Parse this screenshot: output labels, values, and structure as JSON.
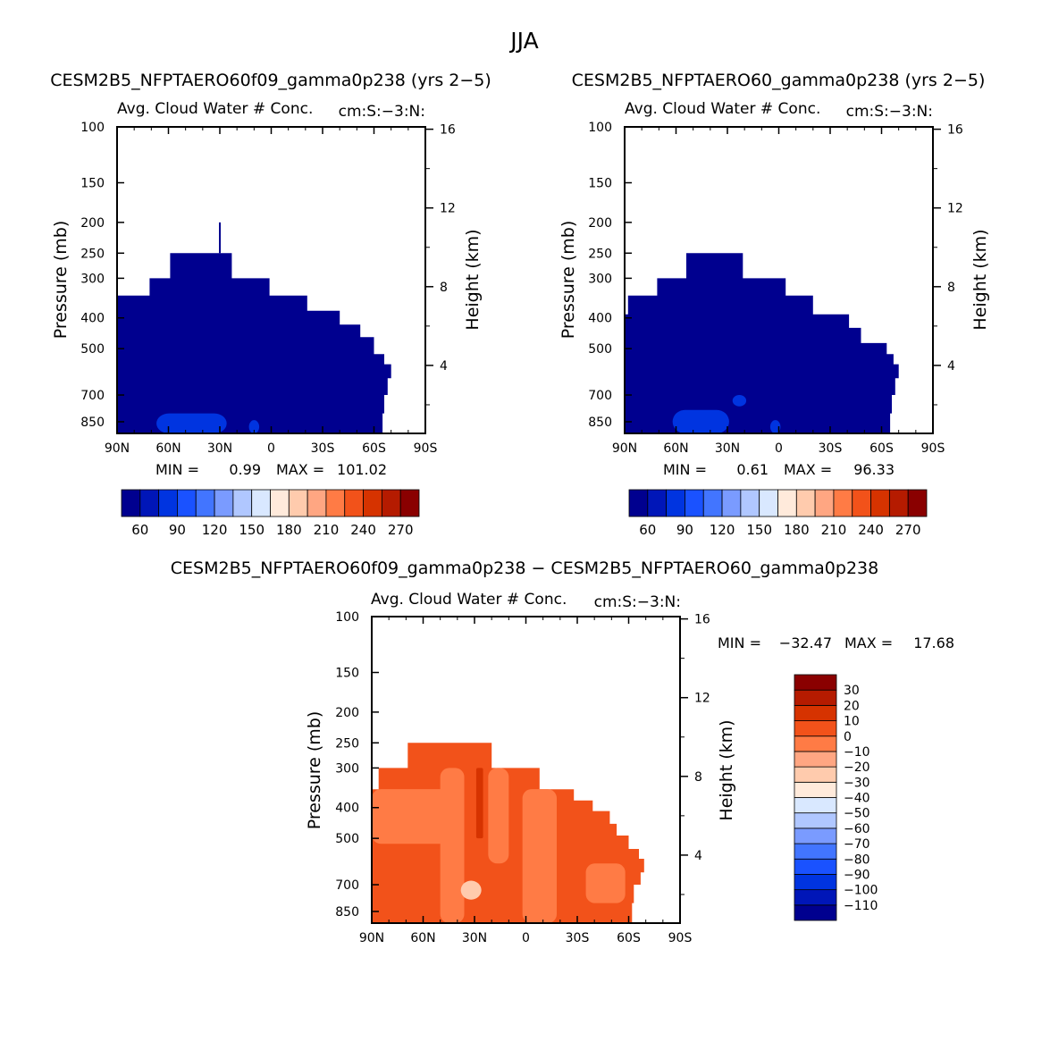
{
  "figure": {
    "season_title": "JJA"
  },
  "colors": {
    "frame": "#000000",
    "abs_scale": [
      "#00008f",
      "#0016b8",
      "#0034e0",
      "#1a52ff",
      "#4275ff",
      "#7a9bff",
      "#b0c7ff",
      "#d9e8ff",
      "#ffeadb",
      "#ffcbad",
      "#ffa682",
      "#ff7b45",
      "#f2521a",
      "#d63300",
      "#b51b00",
      "#8a0000"
    ],
    "diff_scale": [
      "#00008f",
      "#0016b8",
      "#0034e0",
      "#1a52ff",
      "#4275ff",
      "#7a9bff",
      "#b0c7ff",
      "#d9e8ff",
      "#ffeadb",
      "#ffcbad",
      "#ffa682",
      "#ff7b45",
      "#f2521a",
      "#d63300",
      "#b51b00",
      "#8a0000"
    ]
  },
  "chart_data": [
    {
      "type": "contour",
      "panel": "top-left",
      "title": "CESM2B5_NFPTAERO60f09_gamma0p238 (yrs 2−5)",
      "subtitle": "Avg. Cloud Water # Conc.",
      "units": "cm:S:−3:N:",
      "xlabel": "",
      "ylabel": "Pressure (mb)",
      "ylabel_right": "Height (km)",
      "x_ticks": [
        "90N",
        "60N",
        "30N",
        "0",
        "30S",
        "60S",
        "90S"
      ],
      "y_ticks": [
        "100",
        "150",
        "200",
        "250",
        "300",
        "400",
        "500",
        "700",
        "850"
      ],
      "y_ticks_right": [
        "16",
        "12",
        "8",
        "4"
      ],
      "xlim": [
        90,
        -90
      ],
      "ylim": [
        100,
        925
      ],
      "min_label": "MIN =",
      "min_value": "0.99",
      "max_label": "MAX =",
      "max_value": "101.02",
      "colorbar_labels": [
        "60",
        "90",
        "120",
        "150",
        "180",
        "210",
        "240",
        "270"
      ],
      "field_outline": [
        [
          90,
          340
        ],
        [
          71,
          340
        ],
        [
          71,
          300
        ],
        [
          59,
          300
        ],
        [
          59,
          250
        ],
        [
          23,
          250
        ],
        [
          23,
          300
        ],
        [
          1,
          300
        ],
        [
          1,
          340
        ],
        [
          -21,
          340
        ],
        [
          -21,
          380
        ],
        [
          -40,
          380
        ],
        [
          -40,
          420
        ],
        [
          -52,
          420
        ],
        [
          -52,
          460
        ],
        [
          -60,
          460
        ],
        [
          -60,
          520
        ],
        [
          -66,
          520
        ],
        [
          -66,
          560
        ],
        [
          -70,
          560
        ],
        [
          -70,
          620
        ],
        [
          -68,
          620
        ],
        [
          -68,
          700
        ],
        [
          -66,
          700
        ],
        [
          -66,
          800
        ],
        [
          -65,
          800
        ],
        [
          -65,
          925
        ],
        [
          90,
          925
        ]
      ],
      "spike_latitude": 30,
      "spike_top_mb": 200,
      "light_patches": [
        {
          "lat": [
            67,
            26
          ],
          "p_top": 800,
          "p_bot": 925
        },
        {
          "lat": [
            13,
            7
          ],
          "p_top": 840,
          "p_bot": 925
        }
      ]
    },
    {
      "type": "contour",
      "panel": "top-right",
      "title": "CESM2B5_NFPTAERO60_gamma0p238 (yrs 2−5)",
      "subtitle": "Avg. Cloud Water # Conc.",
      "units": "cm:S:−3:N:",
      "xlabel": "",
      "ylabel": "Pressure (mb)",
      "ylabel_right": "Height (km)",
      "x_ticks": [
        "90N",
        "60N",
        "30N",
        "0",
        "30S",
        "60S",
        "90S"
      ],
      "y_ticks": [
        "100",
        "150",
        "200",
        "250",
        "300",
        "400",
        "500",
        "700",
        "850"
      ],
      "y_ticks_right": [
        "16",
        "12",
        "8",
        "4"
      ],
      "xlim": [
        90,
        -90
      ],
      "ylim": [
        100,
        925
      ],
      "min_label": "MIN =",
      "min_value": "0.61",
      "max_label": "MAX =",
      "max_value": "96.33",
      "colorbar_labels": [
        "60",
        "90",
        "120",
        "150",
        "180",
        "210",
        "240",
        "270"
      ],
      "field_outline": [
        [
          90,
          390
        ],
        [
          88,
          390
        ],
        [
          88,
          340
        ],
        [
          71,
          340
        ],
        [
          71,
          300
        ],
        [
          54,
          300
        ],
        [
          54,
          250
        ],
        [
          21,
          250
        ],
        [
          21,
          300
        ],
        [
          -4,
          300
        ],
        [
          -4,
          340
        ],
        [
          -20,
          340
        ],
        [
          -20,
          390
        ],
        [
          -41,
          390
        ],
        [
          -41,
          430
        ],
        [
          -48,
          430
        ],
        [
          -48,
          480
        ],
        [
          -63,
          480
        ],
        [
          -63,
          520
        ],
        [
          -67,
          520
        ],
        [
          -67,
          560
        ],
        [
          -70,
          560
        ],
        [
          -70,
          620
        ],
        [
          -68,
          620
        ],
        [
          -68,
          700
        ],
        [
          -66,
          700
        ],
        [
          -66,
          800
        ],
        [
          -65,
          800
        ],
        [
          -65,
          925
        ],
        [
          90,
          925
        ]
      ],
      "light_patches": [
        {
          "lat": [
            62,
            29
          ],
          "p_top": 780,
          "p_bot": 925
        },
        {
          "lat": [
            27,
            19
          ],
          "p_top": 700,
          "p_bot": 760
        },
        {
          "lat": [
            5,
            -1
          ],
          "p_top": 840,
          "p_bot": 925
        }
      ]
    },
    {
      "type": "contour",
      "panel": "bottom",
      "title": "CESM2B5_NFPTAERO60f09_gamma0p238 − CESM2B5_NFPTAERO60_gamma0p238",
      "subtitle": "Avg. Cloud Water # Conc.",
      "units": "cm:S:−3:N:",
      "xlabel": "",
      "ylabel": "Pressure (mb)",
      "ylabel_right": "Height (km)",
      "x_ticks": [
        "90N",
        "60N",
        "30N",
        "0",
        "30S",
        "60S",
        "90S"
      ],
      "y_ticks": [
        "100",
        "150",
        "200",
        "250",
        "300",
        "400",
        "500",
        "700",
        "850"
      ],
      "y_ticks_right": [
        "16",
        "12",
        "8",
        "4"
      ],
      "xlim": [
        90,
        -90
      ],
      "ylim": [
        100,
        925
      ],
      "min_label": "MIN =",
      "min_value": "−32.47",
      "max_label": "MAX =",
      "max_value": "17.68",
      "colorbar_labels": [
        "30",
        "20",
        "10",
        "0",
        "−10",
        "−20",
        "−30",
        "−40",
        "−50",
        "−60",
        "−70",
        "−80",
        "−90",
        "−100",
        "−110"
      ],
      "field_outline": [
        [
          90,
          350
        ],
        [
          86,
          350
        ],
        [
          86,
          300
        ],
        [
          69,
          300
        ],
        [
          69,
          250
        ],
        [
          20,
          250
        ],
        [
          20,
          300
        ],
        [
          -8,
          300
        ],
        [
          -8,
          350
        ],
        [
          -28,
          350
        ],
        [
          -28,
          380
        ],
        [
          -39,
          380
        ],
        [
          -39,
          410
        ],
        [
          -49,
          410
        ],
        [
          -49,
          450
        ],
        [
          -53,
          450
        ],
        [
          -53,
          490
        ],
        [
          -60,
          490
        ],
        [
          -60,
          540
        ],
        [
          -66,
          540
        ],
        [
          -66,
          580
        ],
        [
          -69,
          580
        ],
        [
          -69,
          640
        ],
        [
          -67,
          640
        ],
        [
          -67,
          700
        ],
        [
          -63,
          700
        ],
        [
          -63,
          800
        ],
        [
          -62,
          800
        ],
        [
          -62,
          925
        ],
        [
          90,
          925
        ]
      ],
      "mid_orange_patches": [
        {
          "lat": [
            90,
            40
          ],
          "p_top": 350,
          "p_bot": 520
        },
        {
          "lat": [
            50,
            36
          ],
          "p_top": 300,
          "p_bot": 925
        },
        {
          "lat": [
            22,
            10
          ],
          "p_top": 300,
          "p_bot": 600
        },
        {
          "lat": [
            2,
            -18
          ],
          "p_top": 350,
          "p_bot": 925
        },
        {
          "lat": [
            -35,
            -58
          ],
          "p_top": 600,
          "p_bot": 800
        }
      ],
      "pale_patch": {
        "lat": [
          38,
          26
        ],
        "p_top": 680,
        "p_bot": 780
      },
      "dark_patch": {
        "lat": [
          29,
          25
        ],
        "p_top": 300,
        "p_bot": 500
      }
    }
  ]
}
